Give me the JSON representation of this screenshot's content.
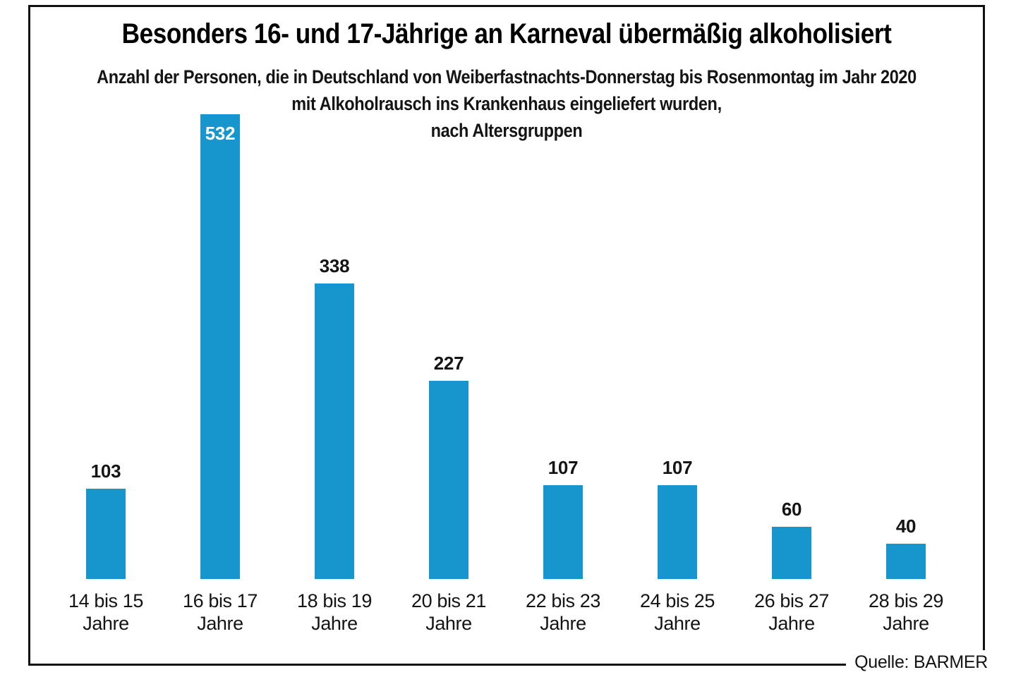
{
  "chart_data": {
    "type": "bar",
    "title": "Besonders 16- und 17-Jährige an Karneval übermäßig alkoholisiert",
    "subtitle": "Anzahl der Personen, die in Deutschland von Weiberfastnachts-Donnerstag bis Rosenmontag im Jahr 2020\nmit Alkoholrausch ins Krankenhaus eingeliefert wurden,\nnach Altersgruppen",
    "source": "Quelle: BARMER",
    "categories": [
      "14 bis 15 Jahre",
      "16 bis 17 Jahre",
      "18 bis 19 Jahre",
      "20 bis 21 Jahre",
      "22 bis 23 Jahre",
      "24 bis 25 Jahre",
      "26 bis 27 Jahre",
      "28 bis 29 Jahre"
    ],
    "categories_display": [
      "14 bis 15\nJahre",
      "16 bis 17\nJahre",
      "18 bis 19\nJahre",
      "20 bis 21\nJahre",
      "22 bis 23\nJahre",
      "24 bis 25\nJahre",
      "26 bis 27\nJahre",
      "28 bis 29\nJahre"
    ],
    "values": [
      103,
      532,
      338,
      227,
      107,
      107,
      60,
      40
    ],
    "value_labels": [
      "103",
      "532",
      "338",
      "227",
      "107",
      "107",
      "60",
      "40"
    ],
    "value_label_positions": [
      "above",
      "inside",
      "above",
      "above",
      "above",
      "above",
      "above",
      "above"
    ],
    "bar_color": "#1796cd",
    "value_label_color_above": "#141414",
    "value_label_color_inside": "#ffffff",
    "text_color": "#141414",
    "frame_color": "#111111",
    "background": "#ffffff",
    "grid": false,
    "legend": false,
    "xlabel": "",
    "ylabel": "",
    "ylim": [
      0,
      560
    ],
    "orientation": "vertical"
  }
}
